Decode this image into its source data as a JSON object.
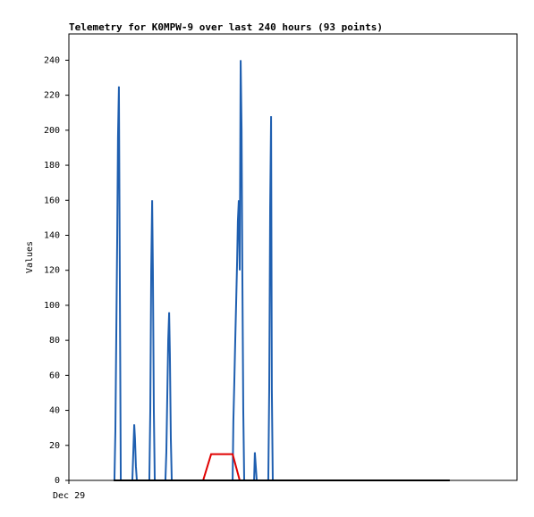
{
  "chart_data": {
    "type": "line",
    "title": "Telemetry for K0MPW-9 over last 240 hours (93 points)",
    "y_label": "Values",
    "xlim": [
      0,
      240
    ],
    "xticks": [
      {
        "value": 0,
        "label": "Dec 29"
      }
    ],
    "ylim": [
      0,
      255
    ],
    "yticks": [
      0,
      20,
      40,
      60,
      80,
      100,
      120,
      140,
      160,
      180,
      200,
      220,
      240
    ],
    "grid": false,
    "series": [
      {
        "color": "#1f5fb0",
        "x": [
          24.4,
          24.9,
          25.4,
          25.9,
          26.3,
          26.8,
          27.3,
          27.8,
          34.0,
          34.5,
          35.0,
          35.4,
          35.9,
          36.4,
          43.1,
          43.6,
          44.1,
          44.6,
          45.0,
          45.5,
          46.0,
          51.7,
          52.2,
          52.7,
          53.2,
          53.7,
          54.1,
          54.6,
          55.1,
          87.7,
          88.1,
          88.6,
          89.1,
          89.6,
          90.1,
          90.5,
          91.0,
          91.5,
          92.0,
          92.5,
          92.9,
          93.4,
          93.9,
          99.2,
          99.6,
          100.1,
          100.6,
          106.8,
          107.3,
          107.8,
          108.3,
          108.7,
          109.2
        ],
        "values": [
          0,
          28,
          84,
          140,
          196,
          225,
          112,
          0,
          0,
          16,
          32,
          24,
          8,
          0,
          0,
          40,
          120,
          160,
          120,
          40,
          0,
          0,
          16,
          48,
          80,
          96,
          72,
          24,
          0,
          0,
          34,
          56,
          80,
          102,
          125,
          148,
          160,
          120,
          240,
          200,
          120,
          40,
          0,
          0,
          16,
          8,
          0,
          0,
          52,
          156,
          208,
          52,
          0
        ]
      },
      {
        "color": "#e00000",
        "x": [
          71.9,
          76.2,
          87.7,
          91.5
        ],
        "values": [
          0,
          15,
          15,
          0
        ]
      },
      {
        "color": "#000000",
        "x": [
          24.0,
          204.0
        ],
        "values": [
          0,
          0
        ]
      }
    ]
  }
}
